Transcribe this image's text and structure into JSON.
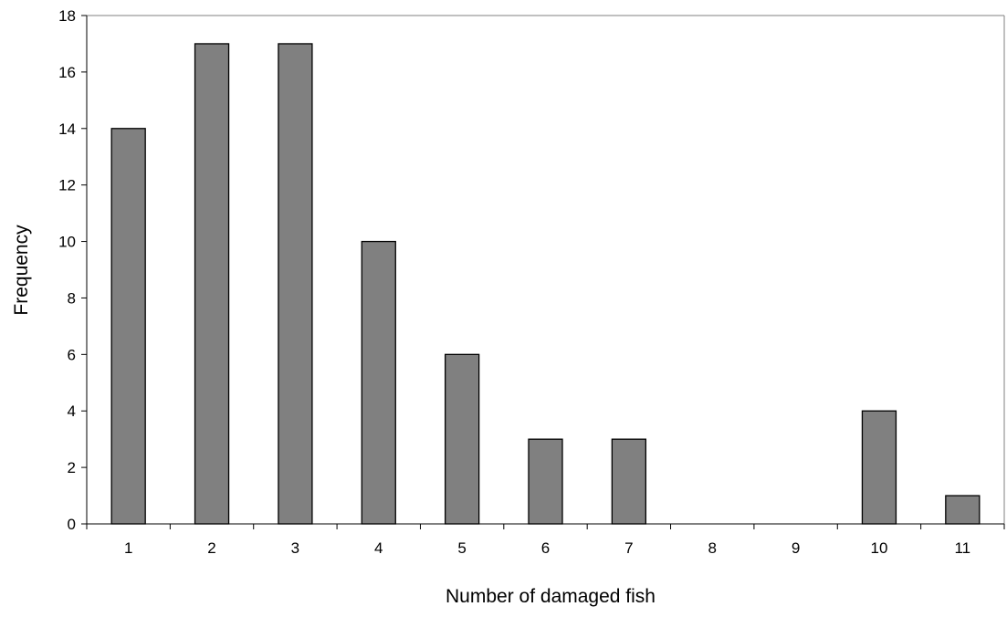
{
  "chart_data": {
    "type": "bar",
    "title": "",
    "xlabel": "Number of damaged fish",
    "ylabel": "Frequency",
    "categories": [
      "1",
      "2",
      "3",
      "4",
      "5",
      "6",
      "7",
      "8",
      "9",
      "10",
      "11"
    ],
    "values": [
      14,
      17,
      17,
      10,
      6,
      3,
      3,
      0,
      0,
      4,
      1
    ],
    "ylim": [
      0,
      18
    ],
    "yticks": [
      0,
      2,
      4,
      6,
      8,
      10,
      12,
      14,
      16,
      18
    ],
    "grid": false,
    "legend": "none",
    "colors": {
      "bar_fill": "#808080",
      "bar_stroke": "#000000",
      "axis": "#000000"
    }
  }
}
